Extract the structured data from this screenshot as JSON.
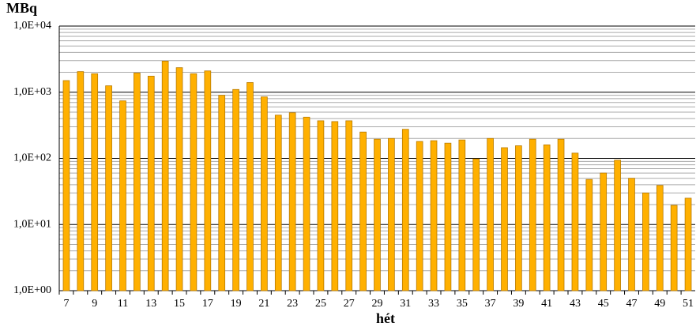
{
  "chart_data": {
    "type": "bar",
    "y_label": "MBq",
    "x_label": "hét",
    "categories": [
      7,
      null,
      9,
      null,
      11,
      null,
      13,
      null,
      15,
      null,
      17,
      null,
      19,
      null,
      21,
      null,
      23,
      null,
      25,
      null,
      27,
      null,
      29,
      null,
      31,
      null,
      33,
      null,
      35,
      null,
      37,
      null,
      39,
      null,
      41,
      null,
      43,
      null,
      45,
      null,
      47,
      null,
      49,
      null,
      51
    ],
    "values": [
      1500,
      2050,
      1900,
      1250,
      740,
      1950,
      1750,
      2950,
      2350,
      1900,
      2100,
      900,
      1100,
      1400,
      850,
      450,
      490,
      420,
      370,
      360,
      370,
      250,
      195,
      200,
      275,
      180,
      185,
      170,
      190,
      98,
      200,
      145,
      155,
      195,
      160,
      195,
      120,
      48,
      60,
      94,
      50,
      30,
      39,
      19.5,
      25
    ],
    "color": "#ffb000",
    "edge_color": "#b87a00",
    "log_scale": true,
    "ylim": [
      1,
      10000
    ],
    "yticks": [
      {
        "value": 1,
        "label": "1,0E+00"
      },
      {
        "value": 10,
        "label": "1,0E+01"
      },
      {
        "value": 100,
        "label": "1,0E+02"
      },
      {
        "value": 1000,
        "label": "1,0E+03"
      },
      {
        "value": 10000,
        "label": "1,0E+04"
      }
    ],
    "grid": true,
    "minor_grid": true
  }
}
